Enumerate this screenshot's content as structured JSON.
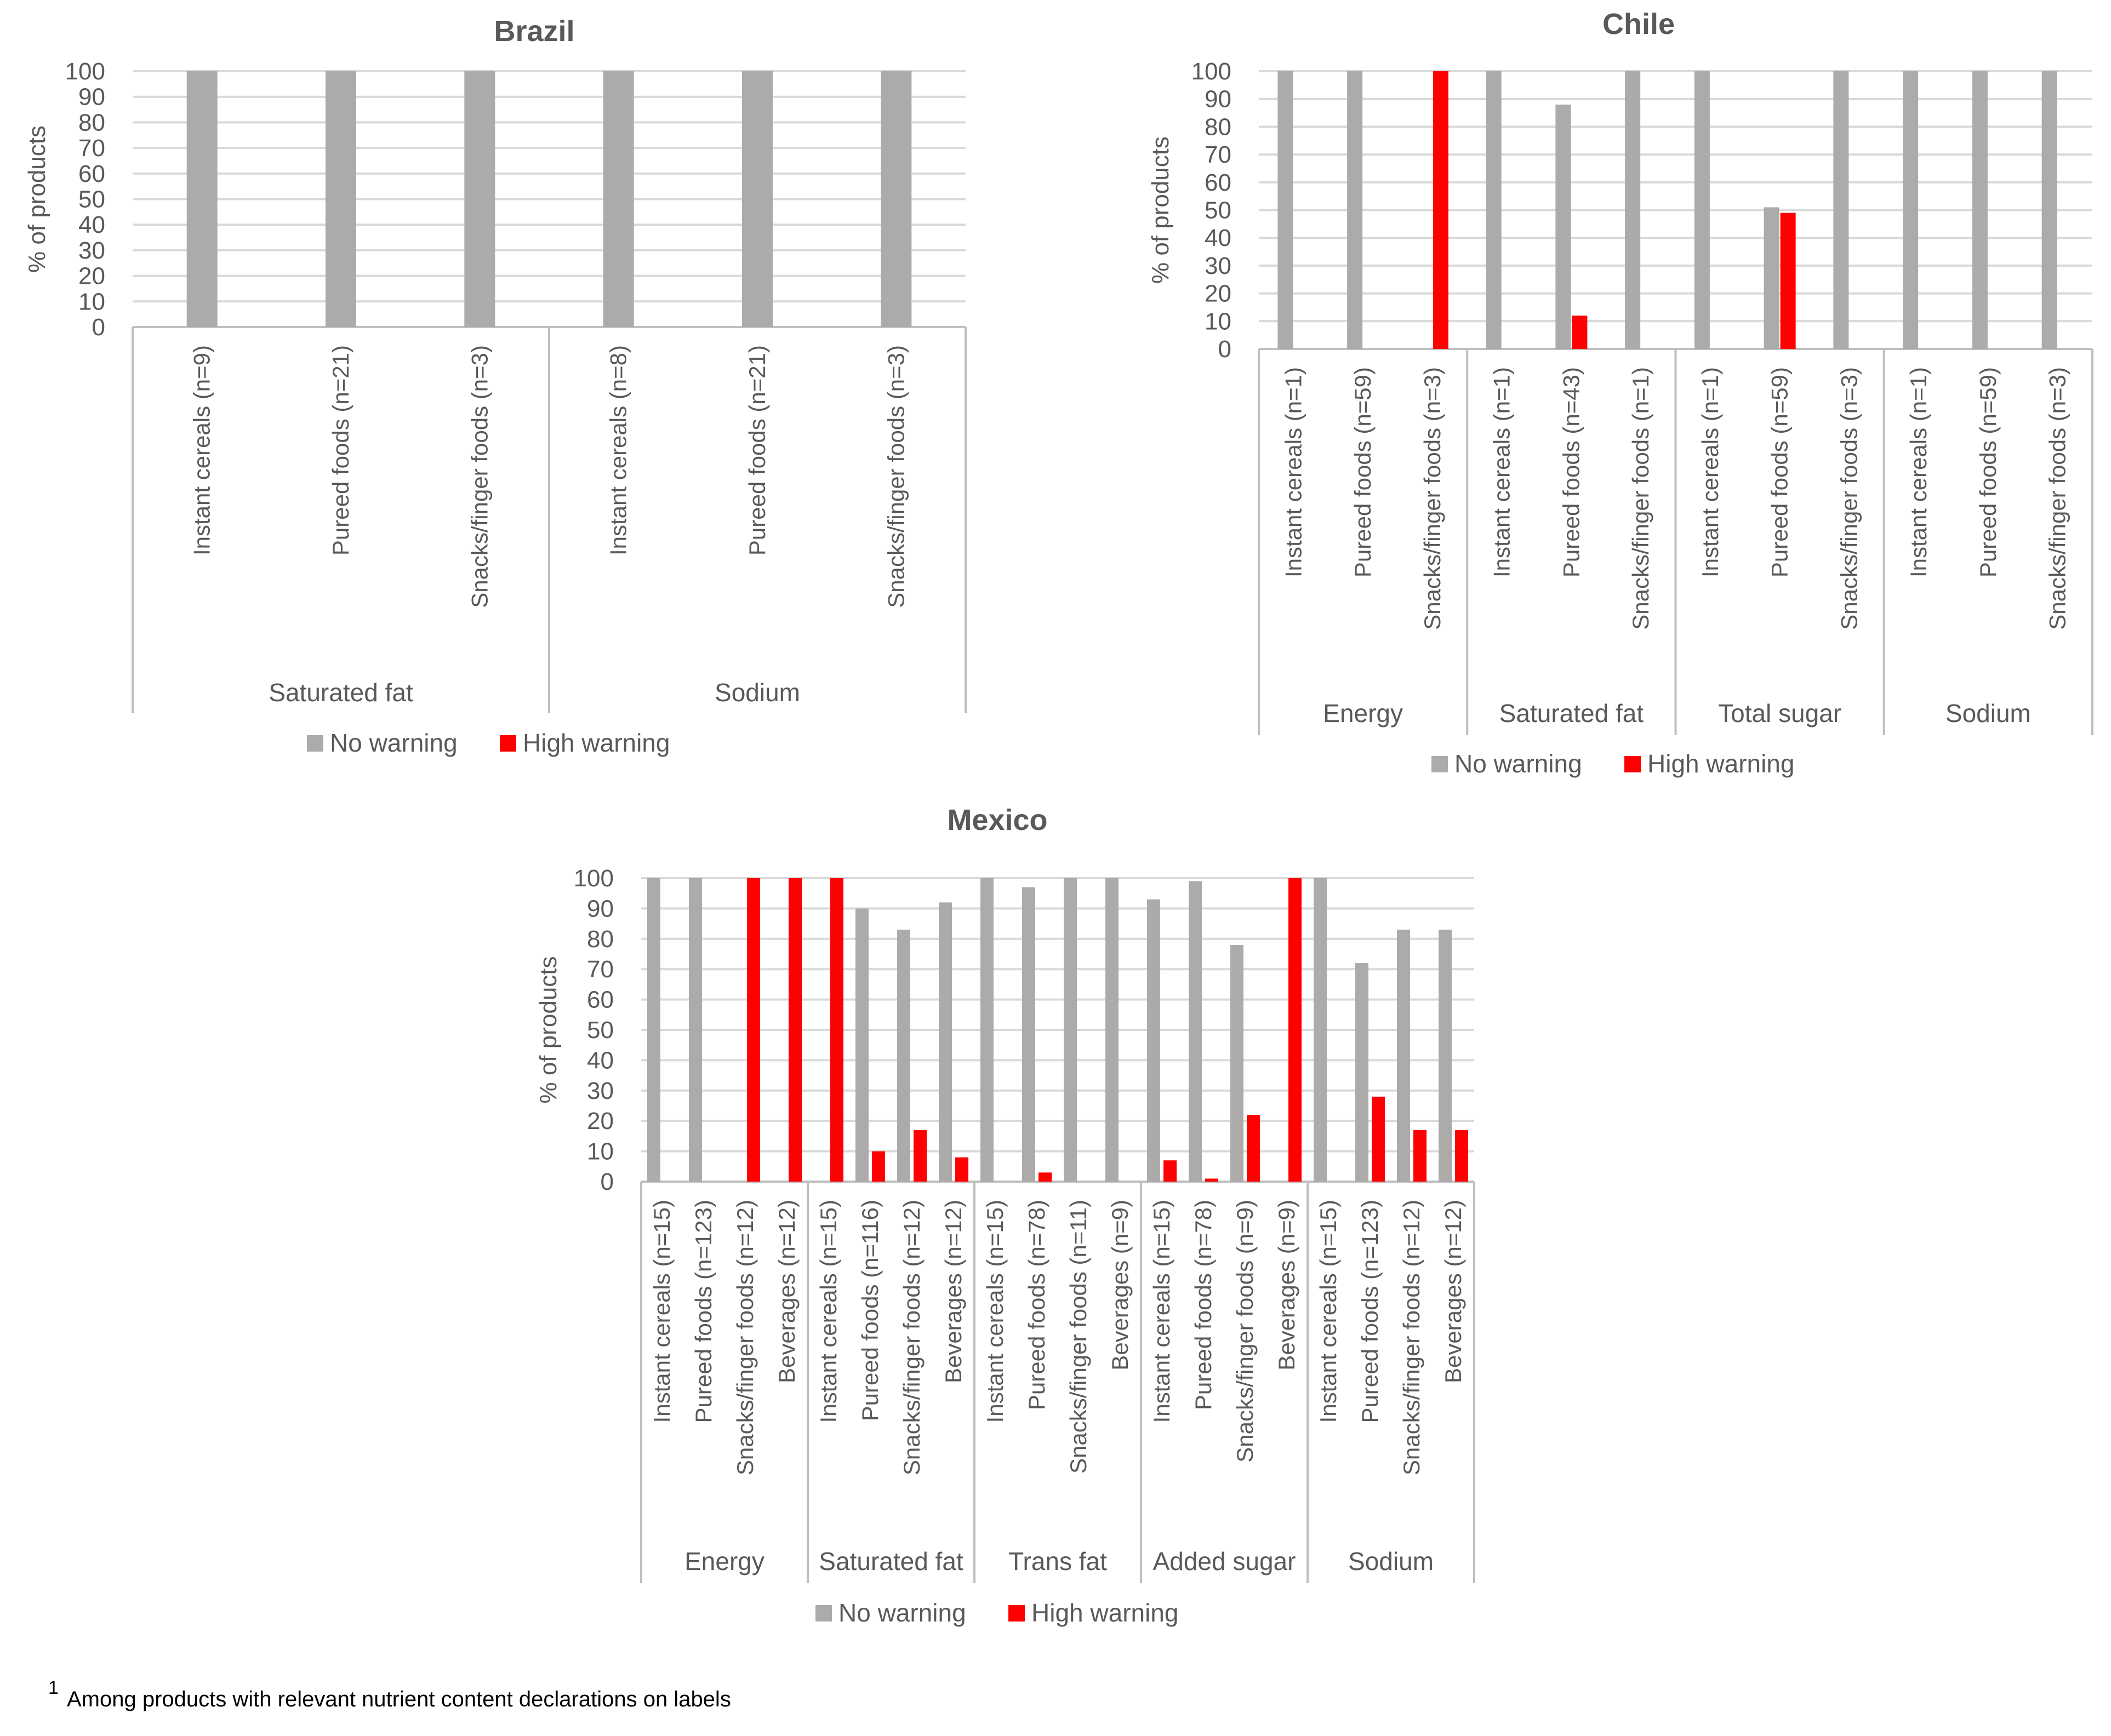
{
  "colors": {
    "no_warning": "#ADAAAA",
    "high_warning": "#FF0000",
    "grid": "#D9D9D9",
    "axis": "#BFBFBF",
    "text": "#595959"
  },
  "footnote": {
    "superscript": "1",
    "text": "Among products with relevant nutrient content declarations on labels"
  },
  "chart_data": [
    {
      "type": "bar",
      "title": "Brazil",
      "ylabel": "% of products",
      "ylim": [
        0,
        100
      ],
      "yticks": [
        0,
        10,
        20,
        30,
        40,
        50,
        60,
        70,
        80,
        90,
        100
      ],
      "legend": [
        "No warning",
        "High warning"
      ],
      "groups": [
        {
          "label": "Saturated fat",
          "items": [
            {
              "label": "Instant cereals (n=9)",
              "no_warning": 100,
              "high_warning": 0
            },
            {
              "label": "Pureed foods (n=21)",
              "no_warning": 100,
              "high_warning": 0
            },
            {
              "label": "Snacks/finger foods (n=3)",
              "no_warning": 100,
              "high_warning": 0
            }
          ]
        },
        {
          "label": "Sodium",
          "items": [
            {
              "label": "Instant cereals (n=8)",
              "no_warning": 100,
              "high_warning": 0
            },
            {
              "label": "Pureed foods (n=21)",
              "no_warning": 100,
              "high_warning": 0
            },
            {
              "label": "Snacks/finger foods (n=3)",
              "no_warning": 100,
              "high_warning": 0
            }
          ]
        }
      ]
    },
    {
      "type": "bar",
      "title": "Chile",
      "ylabel": "% of products",
      "ylim": [
        0,
        100
      ],
      "yticks": [
        0,
        10,
        20,
        30,
        40,
        50,
        60,
        70,
        80,
        90,
        100
      ],
      "legend": [
        "No warning",
        "High warning"
      ],
      "groups": [
        {
          "label": "Energy",
          "items": [
            {
              "label": "Instant cereals (n=1)",
              "no_warning": 100,
              "high_warning": 0
            },
            {
              "label": "Pureed foods (n=59)",
              "no_warning": 100,
              "high_warning": 0
            },
            {
              "label": "Snacks/finger foods (n=3)",
              "no_warning": 0,
              "high_warning": 100
            }
          ]
        },
        {
          "label": "Saturated fat",
          "items": [
            {
              "label": "Instant cereals (n=1)",
              "no_warning": 100,
              "high_warning": 0
            },
            {
              "label": "Pureed foods (n=43)",
              "no_warning": 88,
              "high_warning": 12
            },
            {
              "label": "Snacks/finger foods (n=1)",
              "no_warning": 100,
              "high_warning": 0
            }
          ]
        },
        {
          "label": "Total sugar",
          "items": [
            {
              "label": "Instant cereals (n=1)",
              "no_warning": 100,
              "high_warning": 0
            },
            {
              "label": "Pureed foods (n=59)",
              "no_warning": 51,
              "high_warning": 49
            },
            {
              "label": "Snacks/finger foods (n=3)",
              "no_warning": 100,
              "high_warning": 0
            }
          ]
        },
        {
          "label": "Sodium",
          "items": [
            {
              "label": "Instant cereals (n=1)",
              "no_warning": 100,
              "high_warning": 0
            },
            {
              "label": "Pureed foods (n=59)",
              "no_warning": 100,
              "high_warning": 0
            },
            {
              "label": "Snacks/finger foods (n=3)",
              "no_warning": 100,
              "high_warning": 0
            }
          ]
        }
      ]
    },
    {
      "type": "bar",
      "title": "Mexico",
      "ylabel": "% of products",
      "ylim": [
        0,
        100
      ],
      "yticks": [
        0,
        10,
        20,
        30,
        40,
        50,
        60,
        70,
        80,
        90,
        100
      ],
      "legend": [
        "No warning",
        "High warning"
      ],
      "groups": [
        {
          "label": "Energy",
          "items": [
            {
              "label": "Instant cereals (n=15)",
              "no_warning": 100,
              "high_warning": 0
            },
            {
              "label": "Pureed foods (n=123)",
              "no_warning": 100,
              "high_warning": 0
            },
            {
              "label": "Snacks/finger foods (n=12)",
              "no_warning": 0,
              "high_warning": 100
            },
            {
              "label": "Beverages (n=12)",
              "no_warning": 0,
              "high_warning": 100
            }
          ]
        },
        {
          "label": "Saturated fat",
          "items": [
            {
              "label": "Instant cereals (n=15)",
              "no_warning": 0,
              "high_warning": 100
            },
            {
              "label": "Pureed foods (n=116)",
              "no_warning": 90,
              "high_warning": 10
            },
            {
              "label": "Snacks/finger foods (n=12)",
              "no_warning": 83,
              "high_warning": 17
            },
            {
              "label": "Beverages (n=12)",
              "no_warning": 92,
              "high_warning": 8
            }
          ]
        },
        {
          "label": "Trans fat",
          "items": [
            {
              "label": "Instant cereals (n=15)",
              "no_warning": 100,
              "high_warning": 0
            },
            {
              "label": "Pureed foods (n=78)",
              "no_warning": 97,
              "high_warning": 3
            },
            {
              "label": "Snacks/finger foods (n=11)",
              "no_warning": 100,
              "high_warning": 0
            },
            {
              "label": "Beverages (n=9)",
              "no_warning": 100,
              "high_warning": 0
            }
          ]
        },
        {
          "label": "Added sugar",
          "items": [
            {
              "label": "Instant cereals (n=15)",
              "no_warning": 93,
              "high_warning": 7
            },
            {
              "label": "Pureed foods (n=78)",
              "no_warning": 99,
              "high_warning": 1
            },
            {
              "label": "Snacks/finger foods (n=9)",
              "no_warning": 78,
              "high_warning": 22
            },
            {
              "label": "Beverages (n=9)",
              "no_warning": 0,
              "high_warning": 100
            }
          ]
        },
        {
          "label": "Sodium",
          "items": [
            {
              "label": "Instant cereals (n=15)",
              "no_warning": 100,
              "high_warning": 0
            },
            {
              "label": "Pureed foods (n=123)",
              "no_warning": 72,
              "high_warning": 28
            },
            {
              "label": "Snacks/finger foods (n=12)",
              "no_warning": 83,
              "high_warning": 17
            },
            {
              "label": "Beverages (n=12)",
              "no_warning": 83,
              "high_warning": 17
            }
          ]
        }
      ]
    }
  ]
}
